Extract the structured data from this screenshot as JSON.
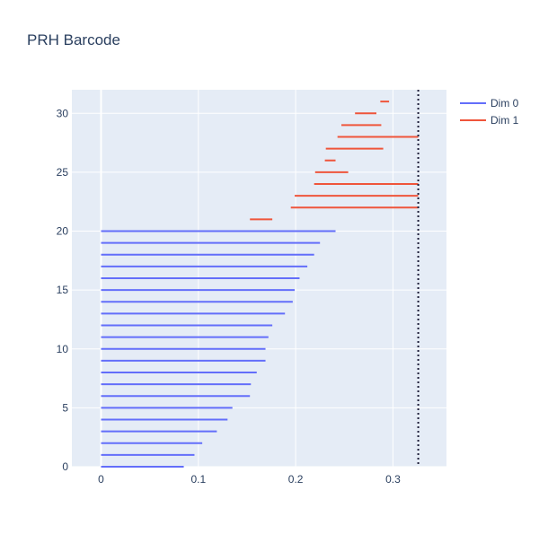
{
  "chart_data": {
    "type": "barcode",
    "title": "PRH Barcode",
    "xlabel": "",
    "ylabel": "",
    "xlim": [
      -0.03,
      0.355
    ],
    "ylim": [
      0,
      32
    ],
    "x_ticks": [
      0,
      0.1,
      0.2,
      0.3
    ],
    "x_tick_labels": [
      "0",
      "0.1",
      "0.2",
      "0.3"
    ],
    "y_ticks": [
      0,
      5,
      10,
      15,
      20,
      25,
      30
    ],
    "y_tick_labels": [
      "0",
      "5",
      "10",
      "15",
      "20",
      "25",
      "30"
    ],
    "grid": true,
    "legend_position": "top-right",
    "cutoff_line": {
      "x": 0.326,
      "style": "dotted",
      "color": "#1f1f3a"
    },
    "series": [
      {
        "name": "Dim 0",
        "color": "#636efa",
        "bars": [
          {
            "y": 0,
            "start": 0,
            "end": 0.085
          },
          {
            "y": 1,
            "start": 0,
            "end": 0.096
          },
          {
            "y": 2,
            "start": 0,
            "end": 0.104
          },
          {
            "y": 3,
            "start": 0,
            "end": 0.119
          },
          {
            "y": 4,
            "start": 0,
            "end": 0.13
          },
          {
            "y": 5,
            "start": 0,
            "end": 0.135
          },
          {
            "y": 6,
            "start": 0,
            "end": 0.153
          },
          {
            "y": 7,
            "start": 0,
            "end": 0.154
          },
          {
            "y": 8,
            "start": 0,
            "end": 0.16
          },
          {
            "y": 9,
            "start": 0,
            "end": 0.169
          },
          {
            "y": 10,
            "start": 0,
            "end": 0.169
          },
          {
            "y": 11,
            "start": 0,
            "end": 0.172
          },
          {
            "y": 12,
            "start": 0,
            "end": 0.176
          },
          {
            "y": 13,
            "start": 0,
            "end": 0.189
          },
          {
            "y": 14,
            "start": 0,
            "end": 0.197
          },
          {
            "y": 15,
            "start": 0,
            "end": 0.199
          },
          {
            "y": 16,
            "start": 0,
            "end": 0.204
          },
          {
            "y": 17,
            "start": 0,
            "end": 0.212
          },
          {
            "y": 18,
            "start": 0,
            "end": 0.219
          },
          {
            "y": 19,
            "start": 0,
            "end": 0.225
          },
          {
            "y": 20,
            "start": 0,
            "end": 0.241
          }
        ]
      },
      {
        "name": "Dim 1",
        "color": "#ef553b",
        "bars": [
          {
            "y": 21,
            "start": 0.153,
            "end": 0.176
          },
          {
            "y": 22,
            "start": 0.195,
            "end": 0.326
          },
          {
            "y": 23,
            "start": 0.199,
            "end": 0.326
          },
          {
            "y": 24,
            "start": 0.219,
            "end": 0.326
          },
          {
            "y": 25,
            "start": 0.22,
            "end": 0.254
          },
          {
            "y": 26,
            "start": 0.23,
            "end": 0.241
          },
          {
            "y": 27,
            "start": 0.231,
            "end": 0.29
          },
          {
            "y": 28,
            "start": 0.243,
            "end": 0.326
          },
          {
            "y": 29,
            "start": 0.247,
            "end": 0.288
          },
          {
            "y": 30,
            "start": 0.261,
            "end": 0.283
          },
          {
            "y": 31,
            "start": 0.287,
            "end": 0.296
          }
        ]
      }
    ]
  }
}
